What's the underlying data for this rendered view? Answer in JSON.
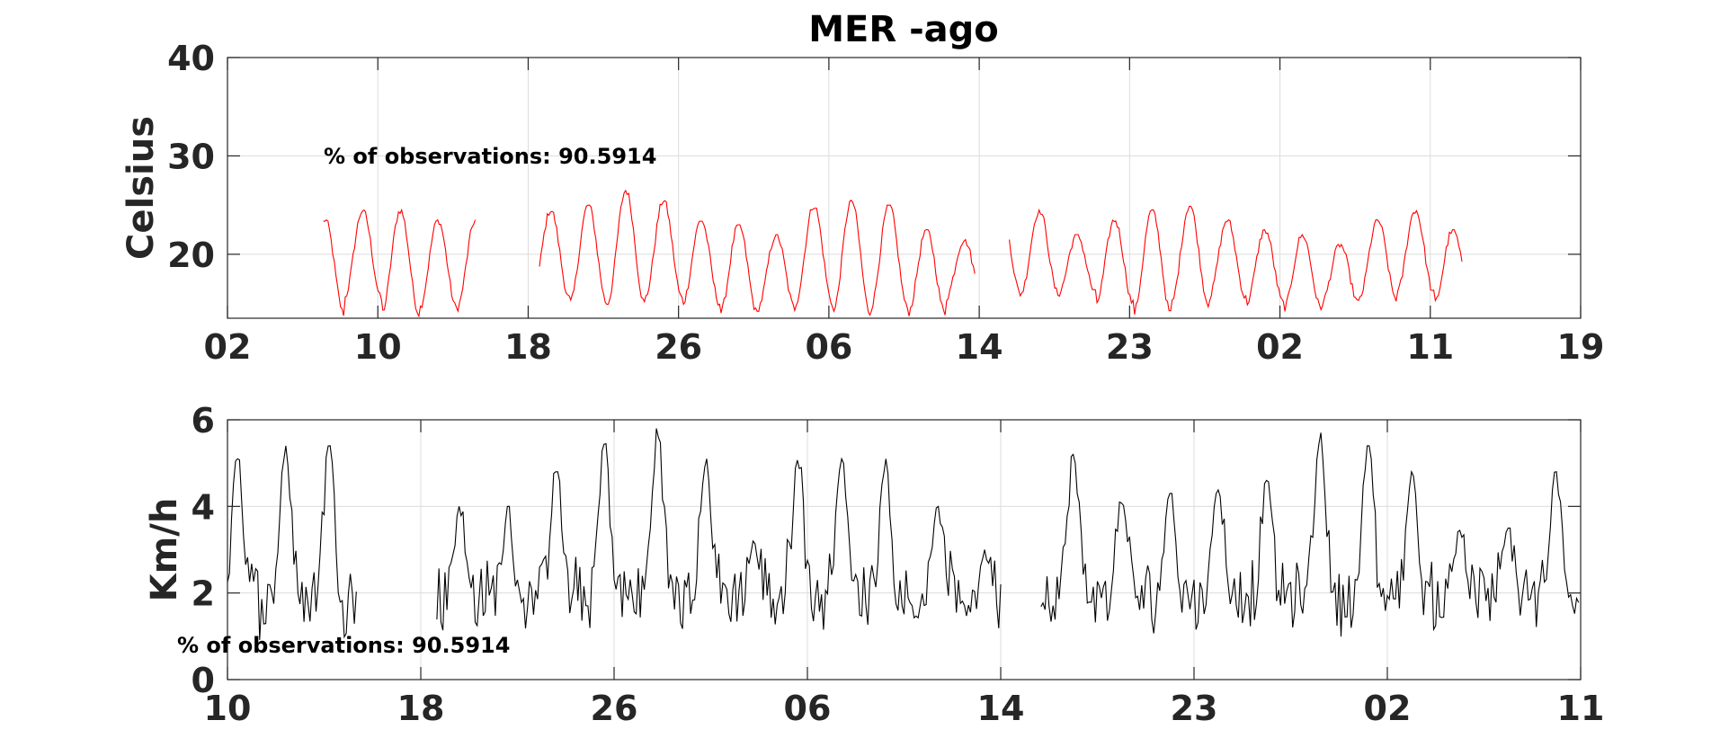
{
  "title": "MER -ago",
  "chart_data": [
    {
      "type": "line",
      "ylabel": "Celsius",
      "annotation": "% of observations: 90.5914",
      "color": "#ff0000",
      "ylim": [
        13.5,
        40
      ],
      "yticks": [
        20,
        30,
        40
      ],
      "xlim": [
        0,
        36
      ],
      "xticks": [
        0,
        4,
        8,
        12,
        16,
        20,
        24,
        28,
        32,
        36
      ],
      "xticklabels": [
        "02",
        "10",
        "18",
        "26",
        "06",
        "14",
        "23",
        "02",
        "11",
        "19"
      ],
      "daily_cycles": [
        {
          "day": 2.6,
          "min": 14.0,
          "max": 23.5
        },
        {
          "day": 3.6,
          "min": 15.5,
          "max": 24.5
        },
        {
          "day": 4.6,
          "min": 14.0,
          "max": 24.5
        },
        {
          "day": 5.6,
          "min": 14.5,
          "max": 23.5
        },
        {
          "day": 8.6,
          "min": 15.5,
          "max": 24.5
        },
        {
          "day": 9.6,
          "min": 15.0,
          "max": 25.0
        },
        {
          "day": 10.6,
          "min": 15.0,
          "max": 26.5
        },
        {
          "day": 11.6,
          "min": 15.5,
          "max": 25.5
        },
        {
          "day": 12.6,
          "min": 15.0,
          "max": 23.5
        },
        {
          "day": 13.6,
          "min": 14.0,
          "max": 23.0
        },
        {
          "day": 14.6,
          "min": 14.5,
          "max": 22.0
        },
        {
          "day": 15.6,
          "min": 15.0,
          "max": 25.0
        },
        {
          "day": 16.6,
          "min": 14.0,
          "max": 25.5
        },
        {
          "day": 17.6,
          "min": 14.5,
          "max": 25.0
        },
        {
          "day": 18.6,
          "min": 14.0,
          "max": 22.5
        },
        {
          "day": 19.6,
          "min": 15.5,
          "max": 21.5
        },
        {
          "day": 21.6,
          "min": 16.0,
          "max": 24.5
        },
        {
          "day": 22.6,
          "min": 16.0,
          "max": 22.0
        },
        {
          "day": 23.6,
          "min": 15.0,
          "max": 23.5
        },
        {
          "day": 24.6,
          "min": 14.0,
          "max": 24.5
        },
        {
          "day": 25.6,
          "min": 15.0,
          "max": 25.0
        },
        {
          "day": 26.6,
          "min": 15.5,
          "max": 23.5
        },
        {
          "day": 27.6,
          "min": 15.0,
          "max": 22.5
        },
        {
          "day": 28.6,
          "min": 14.5,
          "max": 22.0
        },
        {
          "day": 29.6,
          "min": 15.0,
          "max": 21.0
        },
        {
          "day": 30.6,
          "min": 15.5,
          "max": 23.5
        },
        {
          "day": 31.6,
          "min": 16.0,
          "max": 24.5
        },
        {
          "day": 32.6,
          "min": 15.0,
          "max": 22.5
        }
      ],
      "gaps": [
        [
          6.6,
          8.3
        ],
        [
          19.9,
          20.8
        ]
      ],
      "data_range": [
        2.55,
        32.85
      ]
    },
    {
      "type": "line",
      "ylabel": "Km/h",
      "annotation": "% of observations: 90.5914",
      "color": "#000000",
      "ylim": [
        0,
        6
      ],
      "yticks": [
        0,
        2,
        4,
        6
      ],
      "xlim": [
        0,
        28
      ],
      "xticks": [
        0,
        4,
        8,
        12,
        16,
        20,
        24,
        28
      ],
      "xticklabels": [
        "10",
        "18",
        "26",
        "06",
        "14",
        "23",
        "02",
        "11"
      ],
      "daily_peaks": [
        {
          "day": 0.2,
          "max": 5.1
        },
        {
          "day": 1.2,
          "max": 5.4
        },
        {
          "day": 2.1,
          "max": 5.4
        },
        {
          "day": 4.8,
          "max": 4.0
        },
        {
          "day": 5.8,
          "max": 4.0
        },
        {
          "day": 6.8,
          "max": 4.8
        },
        {
          "day": 7.8,
          "max": 5.5
        },
        {
          "day": 8.9,
          "max": 5.8
        },
        {
          "day": 9.9,
          "max": 5.1
        },
        {
          "day": 10.9,
          "max": 3.2
        },
        {
          "day": 11.8,
          "max": 5.3
        },
        {
          "day": 12.7,
          "max": 5.1
        },
        {
          "day": 13.6,
          "max": 5.1
        },
        {
          "day": 14.7,
          "max": 4.0
        },
        {
          "day": 15.7,
          "max": 3.0
        },
        {
          "day": 17.5,
          "max": 5.2
        },
        {
          "day": 18.5,
          "max": 4.1
        },
        {
          "day": 19.5,
          "max": 4.3
        },
        {
          "day": 20.5,
          "max": 4.6
        },
        {
          "day": 21.5,
          "max": 4.6
        },
        {
          "day": 22.6,
          "max": 5.7
        },
        {
          "day": 23.6,
          "max": 5.4
        },
        {
          "day": 24.5,
          "max": 4.8
        },
        {
          "day": 25.5,
          "max": 3.7
        },
        {
          "day": 26.5,
          "max": 3.5
        },
        {
          "day": 27.5,
          "max": 4.8
        }
      ],
      "gaps": [
        [
          2.7,
          4.3
        ],
        [
          16.0,
          16.8
        ]
      ],
      "data_range": [
        0.0,
        28.0
      ]
    }
  ]
}
